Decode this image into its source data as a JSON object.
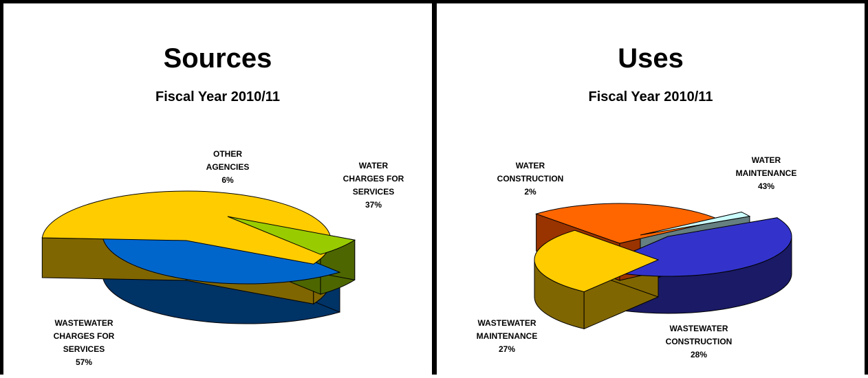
{
  "colors": {
    "border": "#000000",
    "background": "#ffffff"
  },
  "chart_data": [
    {
      "type": "pie",
      "style": "3d-exploded",
      "title": "Sources",
      "subtitle": "Fiscal Year 2010/11",
      "slices": [
        {
          "key": "water-charges",
          "label_lines": [
            "WATER",
            "CHARGES FOR",
            "SERVICES"
          ],
          "percent_text": "37%",
          "value": 37,
          "color": "#0066cc",
          "side_color": "#003366"
        },
        {
          "key": "wastewater-charges",
          "label_lines": [
            "WASTEWATER",
            "CHARGES FOR",
            "SERVICES"
          ],
          "percent_text": "57%",
          "value": 57,
          "color": "#ffcc00",
          "side_color": "#806600"
        },
        {
          "key": "other-agencies",
          "label_lines": [
            "OTHER",
            "AGENCIES"
          ],
          "percent_text": "6%",
          "value": 6,
          "color": "#99cc00",
          "side_color": "#4d6600"
        }
      ]
    },
    {
      "type": "pie",
      "style": "3d-exploded",
      "title": "Uses",
      "subtitle": "Fiscal Year 2010/11",
      "slices": [
        {
          "key": "water-maintenance",
          "label_lines": [
            "WATER",
            "MAINTENANCE"
          ],
          "percent_text": "43%",
          "value": 43,
          "color": "#3333cc",
          "side_color": "#1a1a66"
        },
        {
          "key": "wastewater-construction",
          "label_lines": [
            "WASTEWATER",
            "CONSTRUCTION"
          ],
          "percent_text": "28%",
          "value": 28,
          "color": "#ffcc00",
          "side_color": "#806600"
        },
        {
          "key": "wastewater-maintenance",
          "label_lines": [
            "WASTEWATER",
            "MAINTENANCE"
          ],
          "percent_text": "27%",
          "value": 27,
          "color": "#ff6600",
          "side_color": "#993300"
        },
        {
          "key": "water-construction",
          "label_lines": [
            "WATER",
            "CONSTRUCTION"
          ],
          "percent_text": "2%",
          "value": 2,
          "color": "#ccffff",
          "side_color": "#667f80"
        }
      ]
    }
  ]
}
